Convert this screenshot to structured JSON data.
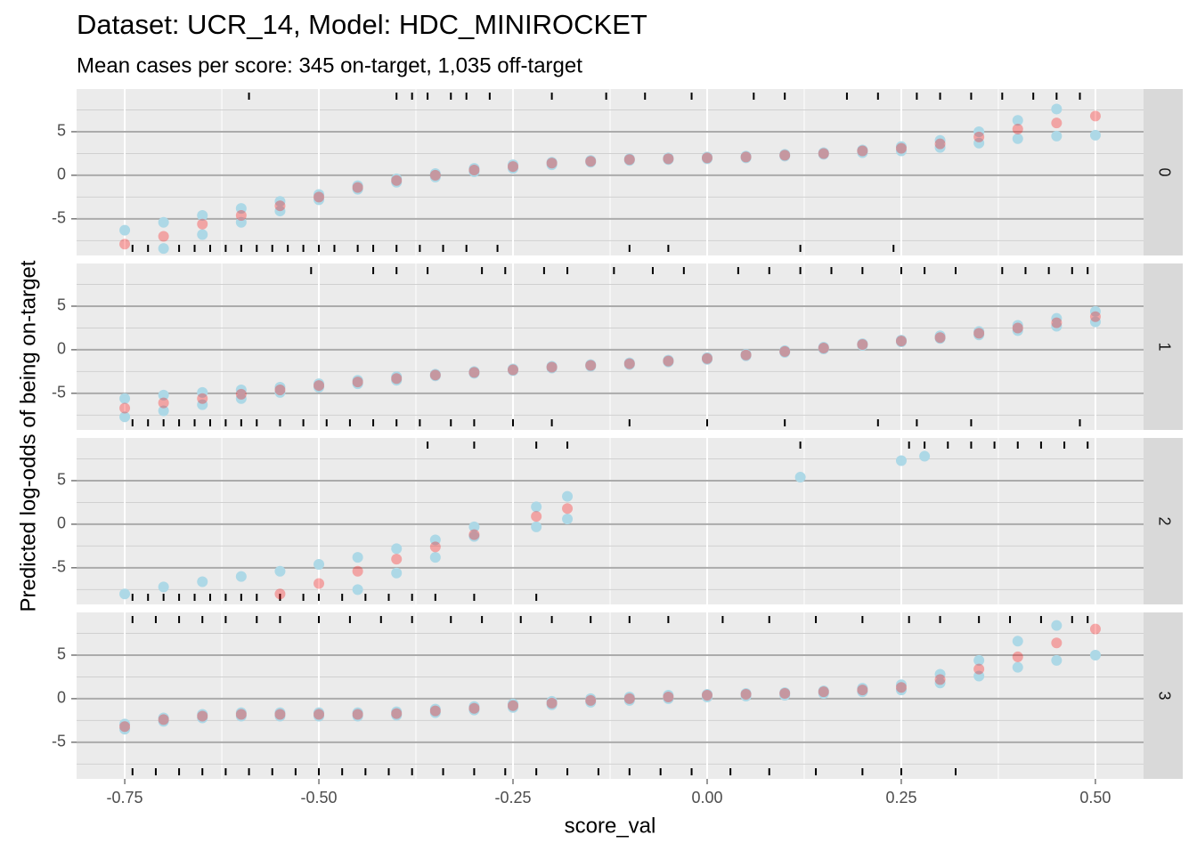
{
  "chart_data": {
    "type": "scatter",
    "title": "Dataset: UCR_14, Model: HDC_MINIROCKET",
    "subtitle": "Mean cases per score: 345 on-target, 1,035 off-target",
    "xlabel": "score_val",
    "ylabel": "Predicted log-odds of being on-target",
    "xlim": [
      -0.812,
      0.562
    ],
    "xticks": [
      -0.75,
      {
        "value": -0.5,
        "label": "-0.50"
      },
      -0.25,
      {
        "value": 0,
        "label": "0.00"
      },
      0.25,
      {
        "value": 0.5,
        "label": "0.50"
      }
    ],
    "ylim": [
      -9.2,
      9.9
    ],
    "yticks": [
      5,
      0,
      -5
    ],
    "grid": true,
    "panels": [
      {
        "label": "0",
        "x": [
          -0.75,
          -0.7,
          -0.65,
          -0.6,
          -0.55,
          -0.5,
          -0.45,
          -0.4,
          -0.35,
          -0.3,
          -0.25,
          -0.2,
          -0.15,
          -0.1,
          -0.05,
          0,
          0.05,
          0.1,
          0.15,
          0.2,
          0.25,
          0.3,
          0.35,
          0.4,
          0.45,
          0.5
        ],
        "series": [
          {
            "color": "#add8e6",
            "opacity": 1,
            "values": [
              -6.3,
              -5.4,
              -4.6,
              -3.8,
              -3.0,
              -2.2,
              -1.2,
              -0.4,
              0.2,
              0.8,
              1.2,
              1.5,
              1.7,
              1.9,
              2.0,
              2.1,
              2.2,
              2.4,
              2.6,
              2.9,
              3.3,
              4.0,
              5.0,
              6.3,
              7.6,
              null
            ]
          },
          {
            "color": "#add8e6",
            "opacity": 1,
            "values": [
              null,
              -8.4,
              -6.8,
              -5.4,
              -4.1,
              -2.8,
              -1.6,
              -0.8,
              -0.2,
              0.4,
              0.8,
              1.2,
              1.5,
              1.7,
              1.8,
              1.9,
              2.0,
              2.2,
              2.4,
              2.6,
              2.8,
              3.2,
              3.7,
              4.2,
              4.5,
              4.6
            ]
          },
          {
            "color": "#ff0000",
            "opacity": 0.3,
            "values": [
              -7.9,
              -7.0,
              -5.6,
              -4.6,
              -3.5,
              -2.5,
              -1.4,
              -0.6,
              0.0,
              0.6,
              1.0,
              1.4,
              1.6,
              1.8,
              1.9,
              2.0,
              2.1,
              2.3,
              2.5,
              2.8,
              3.1,
              3.6,
              4.4,
              5.3,
              6.0,
              6.8
            ]
          }
        ],
        "rug_top": [
          -0.59,
          -0.4,
          -0.38,
          -0.36,
          -0.33,
          -0.31,
          -0.28,
          -0.2,
          -0.13,
          -0.08,
          -0.02,
          0.06,
          0.1,
          0.18,
          0.22,
          0.27,
          0.3,
          0.34,
          0.38,
          0.42,
          0.45,
          0.48
        ],
        "rug_bottom": [
          -0.74,
          -0.72,
          -0.7,
          -0.68,
          -0.66,
          -0.64,
          -0.62,
          -0.6,
          -0.58,
          -0.56,
          -0.54,
          -0.52,
          -0.5,
          -0.48,
          -0.45,
          -0.43,
          -0.4,
          -0.37,
          -0.34,
          -0.31,
          -0.27,
          -0.1,
          -0.05,
          0.12,
          0.24
        ]
      },
      {
        "label": "1",
        "x": [
          -0.75,
          -0.7,
          -0.65,
          -0.6,
          -0.55,
          -0.5,
          -0.45,
          -0.4,
          -0.35,
          -0.3,
          -0.25,
          -0.2,
          -0.15,
          -0.1,
          -0.05,
          0,
          0.05,
          0.1,
          0.15,
          0.2,
          0.25,
          0.3,
          0.35,
          0.4,
          0.45,
          0.5
        ],
        "series": [
          {
            "color": "#add8e6",
            "opacity": 1,
            "values": [
              -5.6,
              -5.2,
              -4.9,
              -4.6,
              -4.3,
              -3.9,
              -3.5,
              -3.1,
              -2.8,
              -2.5,
              -2.2,
              -1.9,
              -1.7,
              -1.5,
              -1.2,
              -0.9,
              -0.5,
              -0.1,
              0.3,
              0.7,
              1.1,
              1.6,
              2.1,
              2.8,
              3.6,
              4.4
            ]
          },
          {
            "color": "#add8e6",
            "opacity": 1,
            "values": [
              -7.7,
              -7.0,
              -6.3,
              -5.6,
              -4.9,
              -4.3,
              -3.9,
              -3.5,
              -3.0,
              -2.7,
              -2.4,
              -2.1,
              -1.9,
              -1.7,
              -1.4,
              -1.1,
              -0.7,
              -0.3,
              0.1,
              0.5,
              0.9,
              1.3,
              1.7,
              2.2,
              2.7,
              3.2
            ]
          },
          {
            "color": "#ff0000",
            "opacity": 0.3,
            "values": [
              -6.7,
              -6.1,
              -5.6,
              -5.1,
              -4.6,
              -4.1,
              -3.7,
              -3.3,
              -2.9,
              -2.6,
              -2.3,
              -2.0,
              -1.8,
              -1.6,
              -1.3,
              -1.0,
              -0.6,
              -0.2,
              0.2,
              0.6,
              1.0,
              1.4,
              1.9,
              2.5,
              3.1,
              3.8
            ]
          }
        ],
        "rug_top": [
          -0.51,
          -0.43,
          -0.4,
          -0.36,
          -0.29,
          -0.26,
          -0.21,
          -0.18,
          -0.12,
          -0.07,
          -0.03,
          0.04,
          0.08,
          0.12,
          0.16,
          0.2,
          0.25,
          0.28,
          0.32,
          0.38,
          0.41,
          0.44,
          0.47,
          0.49
        ],
        "rug_bottom": [
          -0.74,
          -0.72,
          -0.7,
          -0.68,
          -0.66,
          -0.64,
          -0.62,
          -0.6,
          -0.58,
          -0.55,
          -0.52,
          -0.49,
          -0.46,
          -0.43,
          -0.4,
          -0.37,
          -0.33,
          -0.3,
          -0.25,
          -0.2,
          -0.1,
          0.0,
          0.1,
          0.22,
          0.27,
          0.34,
          0.48
        ]
      },
      {
        "label": "2",
        "x": [
          -0.75,
          -0.7,
          -0.65,
          -0.6,
          -0.55,
          -0.5,
          -0.45,
          -0.4,
          -0.35,
          -0.3,
          -0.22,
          -0.18,
          0.12,
          0.25,
          0.28
        ],
        "series": [
          {
            "color": "#add8e6",
            "opacity": 1,
            "values": [
              -8.0,
              -7.2,
              -6.6,
              -6.0,
              -5.4,
              -4.6,
              -3.8,
              -2.8,
              -1.8,
              -0.3,
              2.0,
              3.2,
              5.4,
              7.3,
              7.8
            ]
          },
          {
            "color": "#add8e6",
            "opacity": 1,
            "values": [
              null,
              null,
              null,
              null,
              null,
              null,
              -7.5,
              -5.6,
              -3.8,
              -1.4,
              -0.3,
              0.6,
              null,
              null,
              null
            ]
          },
          {
            "color": "#ff0000",
            "opacity": 0.3,
            "values": [
              null,
              null,
              null,
              null,
              -8.0,
              -6.8,
              -5.4,
              -4.0,
              -2.6,
              -1.2,
              0.9,
              1.8,
              null,
              null,
              null
            ]
          }
        ],
        "rug_top": [
          -0.36,
          -0.3,
          -0.22,
          -0.18,
          0.12,
          0.26,
          0.28,
          0.31,
          0.34,
          0.37,
          0.4,
          0.43,
          0.46,
          0.49
        ],
        "rug_bottom": [
          -0.74,
          -0.72,
          -0.7,
          -0.68,
          -0.66,
          -0.64,
          -0.62,
          -0.6,
          -0.58,
          -0.55,
          -0.52,
          -0.5,
          -0.47,
          -0.44,
          -0.41,
          -0.38,
          -0.35,
          -0.3,
          -0.22
        ]
      },
      {
        "label": "3",
        "x": [
          -0.75,
          -0.7,
          -0.65,
          -0.6,
          -0.55,
          -0.5,
          -0.45,
          -0.4,
          -0.35,
          -0.3,
          -0.25,
          -0.2,
          -0.15,
          -0.1,
          -0.05,
          0,
          0.05,
          0.1,
          0.15,
          0.2,
          0.25,
          0.3,
          0.35,
          0.4,
          0.45,
          0.5
        ],
        "series": [
          {
            "color": "#add8e6",
            "opacity": 1,
            "values": [
              -2.9,
              -2.2,
              -1.8,
              -1.6,
              -1.6,
              -1.6,
              -1.6,
              -1.5,
              -1.2,
              -0.9,
              -0.6,
              -0.3,
              0.0,
              0.2,
              0.4,
              0.5,
              0.6,
              0.7,
              0.9,
              1.2,
              1.6,
              2.8,
              4.4,
              6.6,
              8.4,
              null
            ]
          },
          {
            "color": "#add8e6",
            "opacity": 1,
            "values": [
              -3.5,
              -2.6,
              -2.2,
              -2.0,
              -2.0,
              -2.0,
              -2.0,
              -1.9,
              -1.6,
              -1.3,
              -1.0,
              -0.7,
              -0.4,
              -0.2,
              0.0,
              0.2,
              0.3,
              0.4,
              0.6,
              0.8,
              1.0,
              1.8,
              2.6,
              3.6,
              4.4,
              5.0
            ]
          },
          {
            "color": "#ff0000",
            "opacity": 0.3,
            "values": [
              -3.2,
              -2.4,
              -2.0,
              -1.8,
              -1.8,
              -1.8,
              -1.8,
              -1.7,
              -1.4,
              -1.1,
              -0.8,
              -0.5,
              -0.2,
              0.0,
              0.2,
              0.4,
              0.5,
              0.6,
              0.8,
              1.0,
              1.3,
              2.2,
              3.4,
              4.8,
              6.4,
              8.0
            ]
          }
        ],
        "rug_top": [
          -0.74,
          -0.71,
          -0.68,
          -0.65,
          -0.62,
          -0.58,
          -0.55,
          -0.5,
          -0.46,
          -0.42,
          -0.38,
          -0.33,
          -0.29,
          -0.24,
          -0.2,
          -0.15,
          -0.1,
          -0.05,
          0.02,
          0.08,
          0.14,
          0.2,
          0.26,
          0.3,
          0.35,
          0.39,
          0.43,
          0.47,
          0.49
        ],
        "rug_bottom": [
          -0.74,
          -0.71,
          -0.68,
          -0.65,
          -0.62,
          -0.59,
          -0.56,
          -0.53,
          -0.5,
          -0.47,
          -0.44,
          -0.41,
          -0.38,
          -0.34,
          -0.3,
          -0.26,
          -0.22,
          -0.18,
          -0.14,
          -0.1,
          -0.06,
          -0.02,
          0.03,
          0.08,
          0.14,
          0.2,
          0.25,
          0.32
        ]
      }
    ]
  }
}
